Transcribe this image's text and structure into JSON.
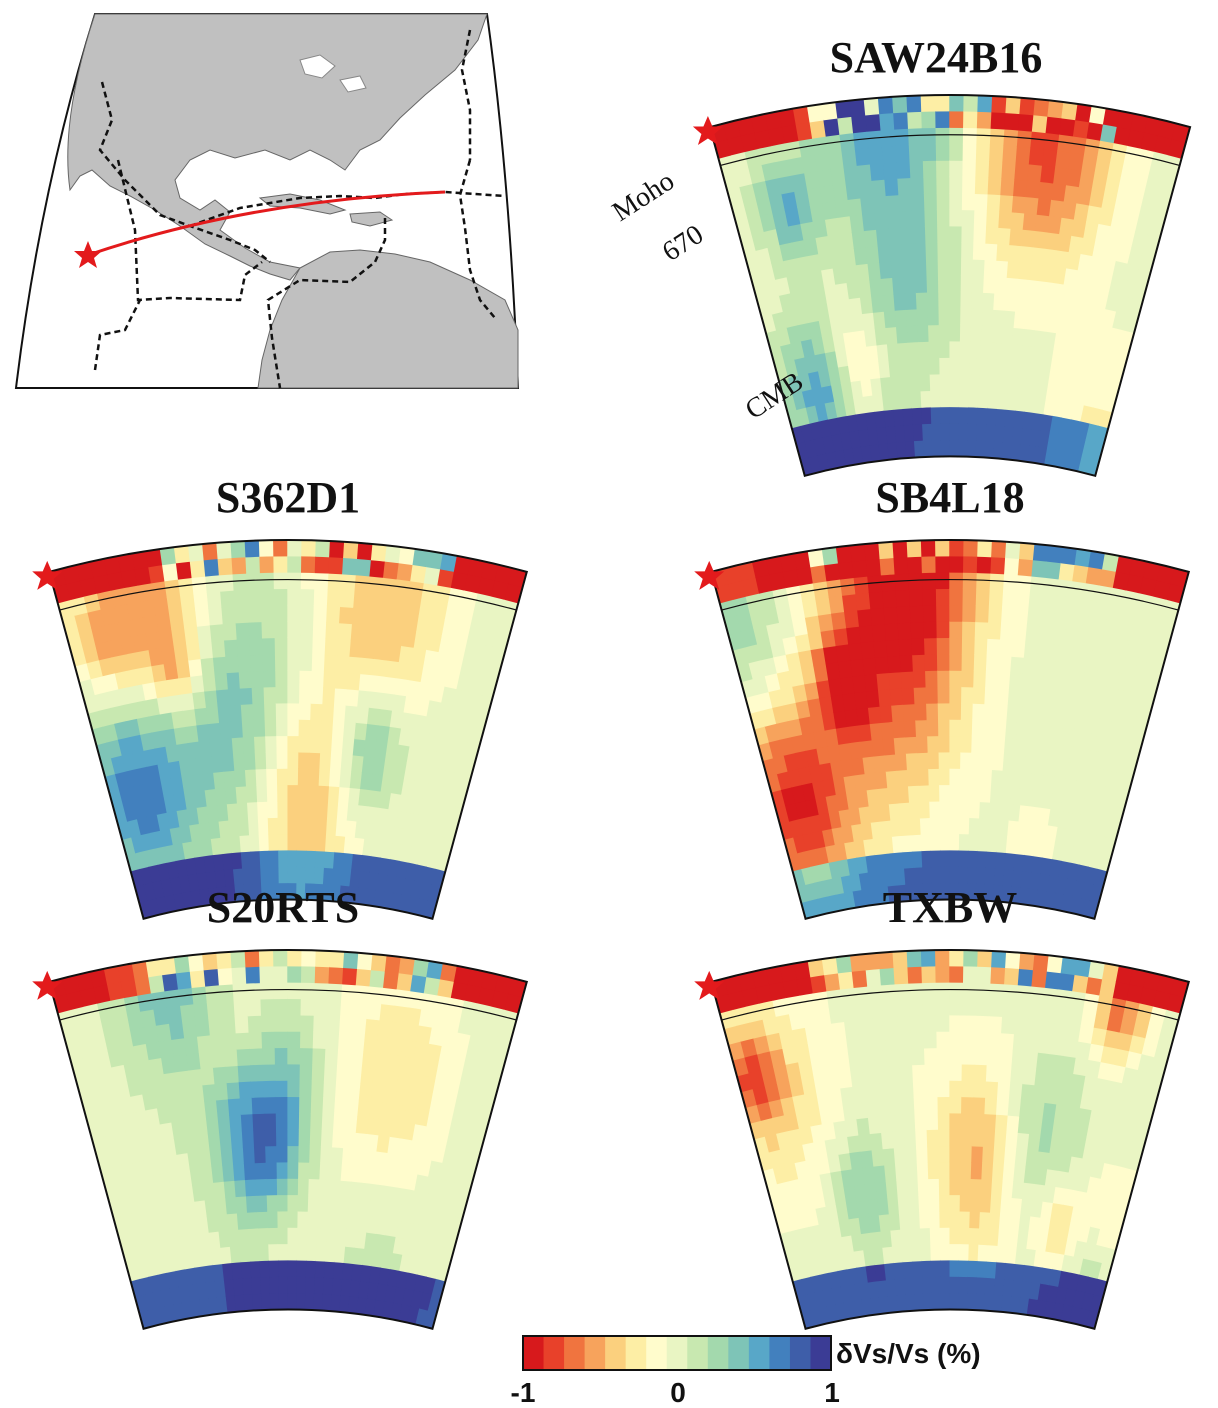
{
  "panels": [
    {
      "title": "SAW24B16"
    },
    {
      "title": "S362D1"
    },
    {
      "title": "SB4L18"
    },
    {
      "title": "S20RTS"
    },
    {
      "title": "TXBW"
    }
  ],
  "section_labels": {
    "moho": "Moho",
    "d670": "670",
    "cmb": "CMB"
  },
  "colorbar": {
    "label": "δVs/Vs (%)",
    "ticks": [
      "-1",
      "0",
      "1"
    ],
    "colors": [
      "#d7191c",
      "#e8412a",
      "#f0743f",
      "#f7a35c",
      "#fbd07e",
      "#fdeea5",
      "#fffccc",
      "#e9f5c3",
      "#c8e8b0",
      "#a3d9ad",
      "#7ec4b7",
      "#58a7c8",
      "#4280be",
      "#3e5ea9",
      "#3b3c95"
    ]
  },
  "map": {
    "land_color": "#c0c0c0",
    "path_color": "#e31a1c",
    "star_color": "#e31a1c"
  }
}
